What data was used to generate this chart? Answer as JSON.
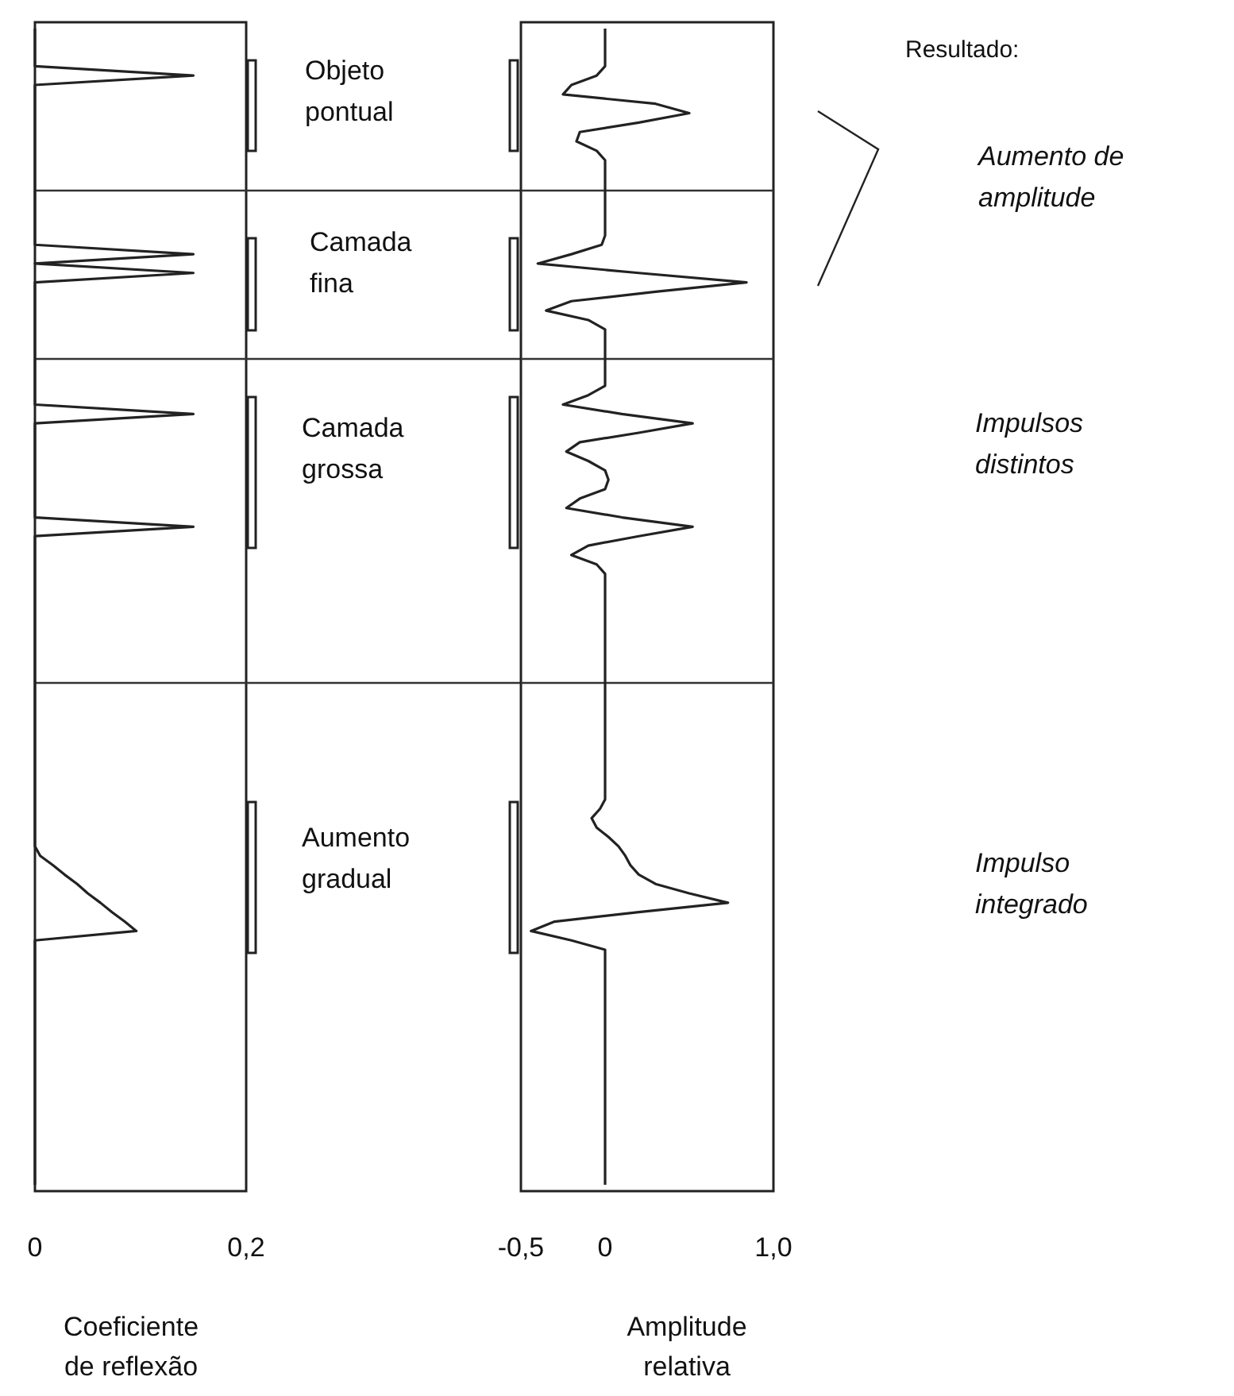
{
  "chart_data": [
    {
      "type": "line",
      "orientation": "horizontal",
      "xlabel": "Coeficiente\nde reflexão",
      "xlim": [
        0,
        0.2
      ],
      "xticks": [
        {
          "value": 0,
          "label": "0"
        },
        {
          "value": 0.2,
          "label": "0,2"
        }
      ],
      "tick_labels": "x",
      "marker": "none",
      "line_style": "solid",
      "categories": [
        null,
        null,
        null,
        null,
        null,
        null,
        null,
        null,
        null,
        null,
        null,
        null,
        null,
        null,
        null,
        null,
        null,
        null,
        null,
        null,
        null,
        null,
        null,
        null,
        null,
        null,
        null,
        null,
        null,
        null,
        null,
        null,
        null,
        null,
        null,
        null,
        null,
        null,
        null,
        null,
        null,
        null,
        null,
        null,
        null,
        null,
        null,
        null,
        null,
        null,
        null,
        null,
        null,
        null,
        null,
        null,
        null,
        null,
        null,
        null,
        null,
        null,
        null,
        null,
        null,
        null,
        null,
        null,
        null,
        null,
        null,
        null,
        null,
        null,
        null,
        null,
        null,
        null,
        null,
        null,
        null,
        null,
        null,
        null,
        null,
        null,
        null,
        null,
        null,
        null,
        null,
        null,
        null,
        null,
        null,
        null,
        null,
        null,
        null,
        null,
        null,
        null,
        null,
        null,
        null,
        null,
        null,
        null,
        null,
        null,
        null,
        null,
        null,
        null,
        null,
        null,
        null,
        null,
        null,
        null,
        null,
        null,
        null,
        null
      ],
      "series": [
        {
          "color": "#222222",
          "values": [
            0,
            0,
            0,
            0,
            0,
            0.15,
            0,
            0,
            0,
            0,
            0,
            0,
            0,
            0,
            0,
            0,
            0,
            0,
            0,
            0,
            0,
            0,
            0,
            0,
            0.15,
            0,
            0.15,
            0,
            0,
            0,
            0,
            0,
            0,
            0,
            0,
            0,
            0,
            0,
            0,
            0,
            0,
            0.15,
            0,
            0,
            0,
            0,
            0,
            0,
            0,
            0,
            0,
            0,
            0,
            0.15,
            0,
            0,
            0,
            0,
            0,
            0,
            0,
            0,
            0,
            0,
            0,
            0,
            0,
            0,
            0,
            0,
            0,
            0,
            0,
            0,
            0,
            0,
            0,
            0,
            0,
            0,
            0,
            0,
            0,
            0,
            0,
            0,
            0,
            0,
            0.005,
            0.017,
            0.028,
            0.04,
            0.05,
            0.062,
            0.073,
            0.085,
            0.096,
            0,
            0,
            0,
            0,
            0,
            0,
            0,
            0,
            0,
            0,
            0,
            0,
            0,
            0,
            0,
            0,
            0,
            0,
            0,
            0,
            0,
            0,
            0,
            0,
            0,
            0,
            0
          ]
        }
      ],
      "annotations": [
        "Objeto\npontual",
        "Camada\nfina",
        "Camada\ngrossa",
        "Aumento\ngradual"
      ]
    },
    {
      "type": "line",
      "orientation": "horizontal",
      "xlabel": "Amplitude\nrelativa",
      "xlim": [
        -0.5,
        1.0
      ],
      "xticks": [
        {
          "value": -0.5,
          "label": "-0,5"
        },
        0,
        {
          "value": 1.0,
          "label": "1,0"
        }
      ],
      "tick_labels": "x",
      "marker": "none",
      "line_style": "solid",
      "categories": [
        null,
        null,
        null,
        null,
        null,
        null,
        null,
        null,
        null,
        null,
        null,
        null,
        null,
        null,
        null,
        null,
        null,
        null,
        null,
        null,
        null,
        null,
        null,
        null,
        null,
        null,
        null,
        null,
        null,
        null,
        null,
        null,
        null,
        null,
        null,
        null,
        null,
        null,
        null,
        null,
        null,
        null,
        null,
        null,
        null,
        null,
        null,
        null,
        null,
        null,
        null,
        null,
        null,
        null,
        null,
        null,
        null,
        null,
        null,
        null,
        null,
        null,
        null,
        null,
        null,
        null,
        null,
        null,
        null,
        null,
        null,
        null,
        null,
        null,
        null,
        null,
        null,
        null,
        null,
        null,
        null,
        null,
        null,
        null,
        null,
        null,
        null,
        null,
        null,
        null,
        null,
        null,
        null,
        null,
        null,
        null,
        null,
        null,
        null,
        null,
        null,
        null,
        null,
        null,
        null,
        null,
        null,
        null,
        null,
        null,
        null,
        null,
        null,
        null,
        null,
        null,
        null,
        null,
        null,
        null,
        null,
        null,
        null,
        null
      ],
      "series": [
        {
          "color": "#222222",
          "values": [
            0,
            0,
            0,
            0,
            0,
            -0.05,
            -0.2,
            -0.25,
            0.3,
            0.5,
            0.2,
            -0.15,
            -0.17,
            -0.05,
            0,
            0,
            0,
            0,
            0,
            0,
            0,
            0,
            0,
            -0.02,
            -0.2,
            -0.4,
            0.2,
            0.84,
            0.3,
            -0.2,
            -0.35,
            -0.1,
            0,
            0,
            0,
            0,
            0,
            0,
            0,
            -0.1,
            -0.25,
            0.1,
            0.52,
            0.2,
            -0.15,
            -0.23,
            -0.1,
            0,
            0.02,
            0,
            -0.15,
            -0.23,
            0.1,
            0.52,
            0.2,
            -0.1,
            -0.2,
            -0.05,
            0,
            0,
            0,
            0,
            0,
            0,
            0,
            0,
            0,
            0,
            0,
            0,
            0,
            0,
            0,
            0,
            0,
            0,
            0,
            0,
            0,
            0,
            0,
            0,
            0,
            -0.03,
            -0.08,
            -0.05,
            0.02,
            0.08,
            0.12,
            0.15,
            0.2,
            0.3,
            0.5,
            0.73,
            0.2,
            -0.3,
            -0.44,
            -0.2,
            0,
            0,
            0,
            0,
            0,
            0,
            0,
            0,
            0,
            0,
            0,
            0,
            0,
            0,
            0,
            0,
            0,
            0,
            0,
            0,
            0,
            0,
            0,
            0,
            0,
            0
          ]
        }
      ],
      "annotations": [
        "Resultado:",
        "Aumento de\namplitude",
        "Impulsos\ndistintos",
        "Impulso\nintegrado"
      ]
    }
  ]
}
